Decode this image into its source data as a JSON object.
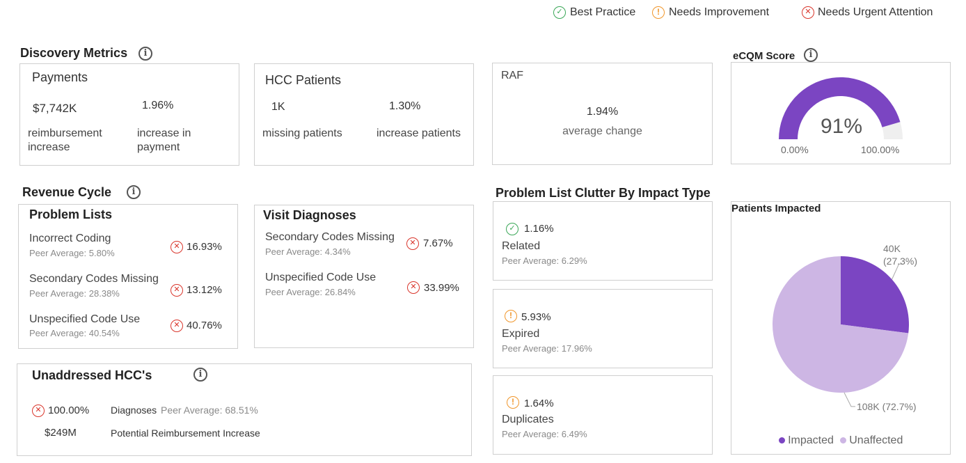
{
  "legend": {
    "best": "Best Practice",
    "improve": "Needs Improvement",
    "urgent": "Needs Urgent Attention"
  },
  "discovery": {
    "title": "Discovery Metrics",
    "payments": {
      "title": "Payments",
      "value1": "$7,742K",
      "label1": "reimbursement increase",
      "value2": "1.96%",
      "label2": "increase in payment"
    },
    "hcc": {
      "title": "HCC Patients",
      "value1": "1K",
      "label1": "missing patients",
      "value2": "1.30%",
      "label2": "increase patients"
    },
    "raf": {
      "title": "RAF",
      "value": "1.94%",
      "label": "average change"
    }
  },
  "ecqm": {
    "title": "eCQM Score",
    "value": "91%",
    "fraction": 0.91,
    "min": "0.00%",
    "max": "100.00%",
    "fill_color": "#7b45c2",
    "rest_color": "#efefef"
  },
  "revenue": {
    "title": "Revenue Cycle",
    "problem_lists": {
      "title": "Problem Lists",
      "items": [
        {
          "label": "Incorrect Coding",
          "peer": "Peer Average: 5.80%",
          "value": "16.93%"
        },
        {
          "label": "Secondary Codes Missing",
          "peer": "Peer Average: 28.38%",
          "value": "13.12%"
        },
        {
          "label": "Unspecified Code Use",
          "peer": "Peer Average: 40.54%",
          "value": "40.76%"
        }
      ]
    },
    "visit_diagnoses": {
      "title": "Visit Diagnoses",
      "items": [
        {
          "label": "Secondary Codes Missing",
          "peer": "Peer Average: 4.34%",
          "value": "7.67%"
        },
        {
          "label": "Unspecified Code Use",
          "peer": "Peer Average: 26.84%",
          "value": "33.99%"
        }
      ]
    }
  },
  "unaddressed": {
    "title": "Unaddressed HCC's",
    "pct": "100.00%",
    "diag_label": "Diagnoses",
    "diag_peer": "Peer Average: 68.51%",
    "amount": "$249M",
    "amount_label": "Potential Reimbursement Increase"
  },
  "clutter": {
    "title": "Problem List Clutter By Impact Type",
    "items": [
      {
        "value": "1.16%",
        "label": "Related",
        "peer": "Peer Average: 6.29%",
        "status": "good"
      },
      {
        "value": "5.93%",
        "label": "Expired",
        "peer": "Peer Average: 17.96%",
        "status": "warn"
      },
      {
        "value": "1.64%",
        "label": "Duplicates",
        "peer": "Peer Average: 6.49%",
        "status": "warn"
      }
    ]
  },
  "chart_data": {
    "type": "pie",
    "title": "Patients Impacted",
    "categories": [
      "Impacted",
      "Unaffected"
    ],
    "values": [
      40,
      108
    ],
    "unit": "K",
    "data_labels": [
      "40K (27.3%)",
      "108K (72.7%)"
    ],
    "percentages": [
      27.3,
      72.7
    ],
    "colors": [
      "#7b45c2",
      "#cdb6e4"
    ],
    "legend_position": "bottom"
  }
}
